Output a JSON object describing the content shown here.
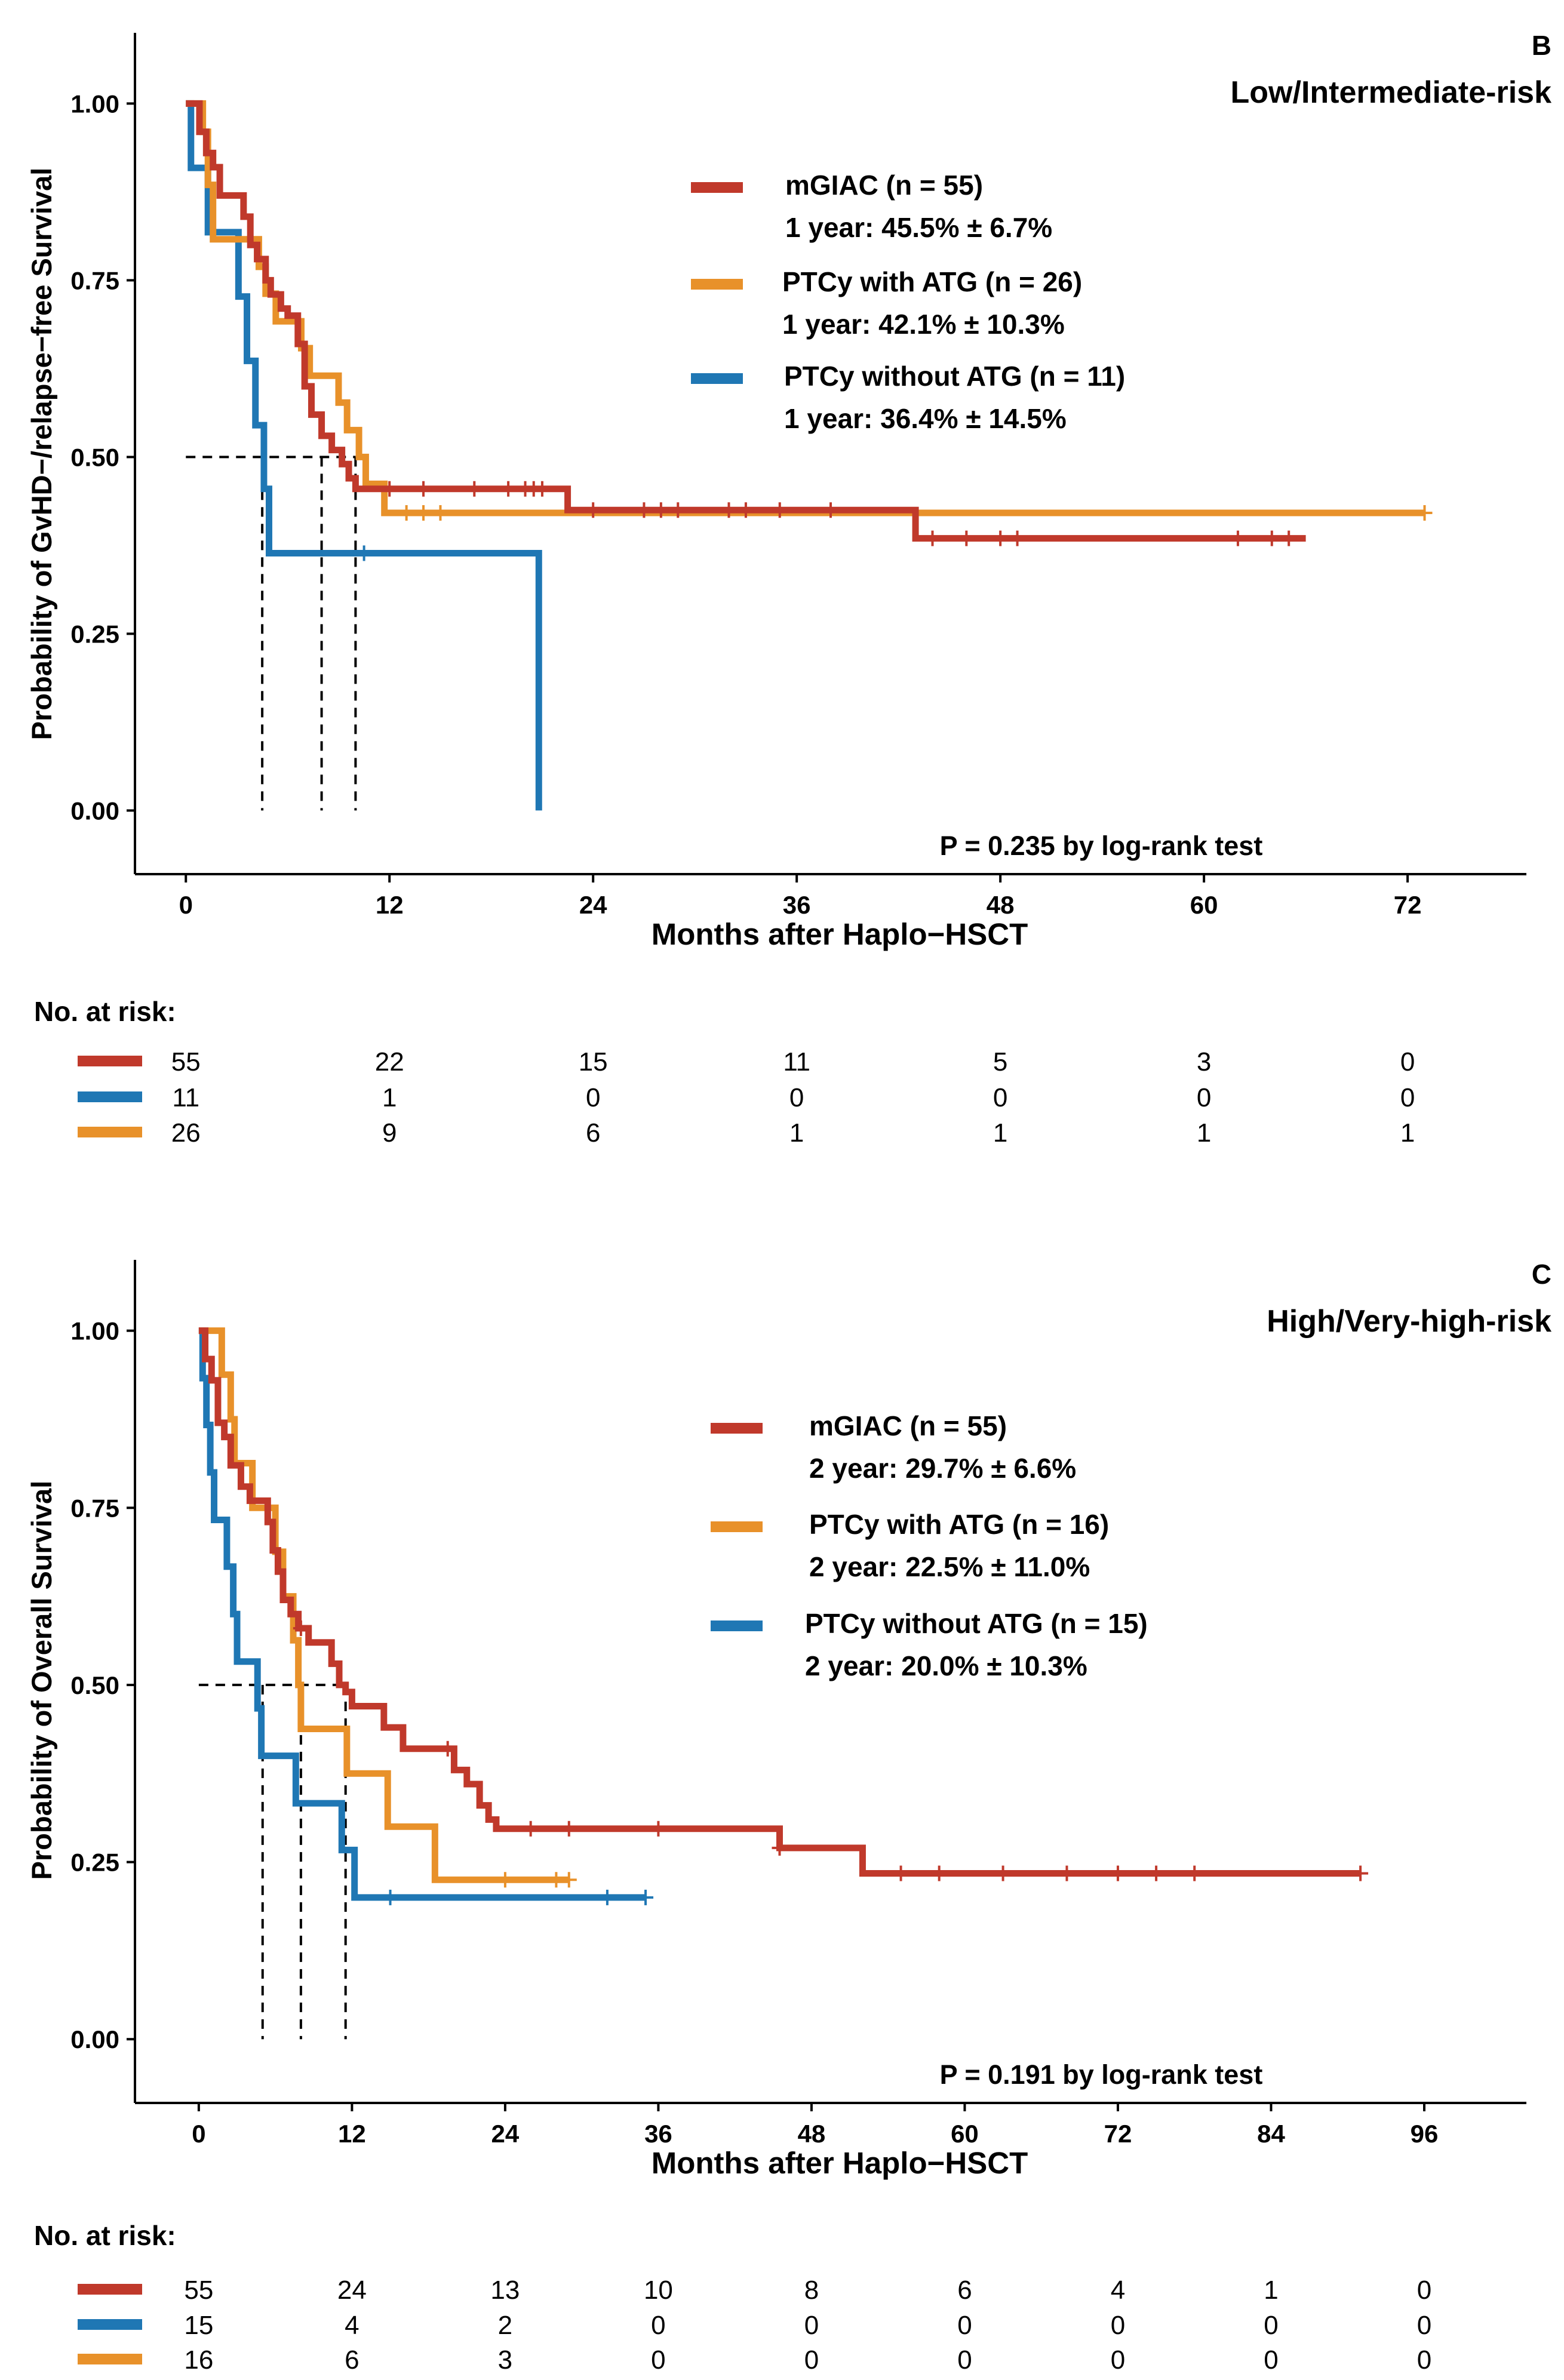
{
  "colors": {
    "mGIAC": "#C0392B",
    "with_atg": "#E8912A",
    "without_atg": "#1F77B4",
    "axis": "#000000"
  },
  "chart_data": [
    {
      "type": "kaplan-meier",
      "panel_letter": "B",
      "title": "Low/Intermediate-risk",
      "ylabel": "Probability of GvHD−/relapse−free Survival",
      "xlabel": "Months after Haplo−HSCT",
      "xlim": [
        -3,
        79
      ],
      "ylim": [
        -0.09,
        1.1
      ],
      "x_ticks": [
        0,
        12,
        24,
        36,
        48,
        60,
        72
      ],
      "y_ticks": [
        "0.00",
        "0.25",
        "0.50",
        "0.75",
        "1.00"
      ],
      "pvalue": "P = 0.235 by log-rank test",
      "median_survival_months": [
        4.5,
        8,
        10
      ],
      "risk_table_title": "No. at risk:",
      "legend_position": "top-right",
      "series": [
        {
          "key": "mGIAC",
          "color_key": "mGIAC",
          "name": "mGIAC (n = 55)",
          "stat": "1 year: 45.5% ± 6.7%",
          "steps": [
            [
              0,
              1.0
            ],
            [
              0.8,
              0.96
            ],
            [
              1.2,
              0.93
            ],
            [
              1.6,
              0.91
            ],
            [
              2,
              0.87
            ],
            [
              3.4,
              0.84
            ],
            [
              3.8,
              0.8
            ],
            [
              4.2,
              0.78
            ],
            [
              4.7,
              0.75
            ],
            [
              5,
              0.73
            ],
            [
              5.6,
              0.71
            ],
            [
              6,
              0.7
            ],
            [
              6.6,
              0.66
            ],
            [
              7,
              0.6
            ],
            [
              7.4,
              0.56
            ],
            [
              8,
              0.53
            ],
            [
              8.6,
              0.51
            ],
            [
              9.2,
              0.49
            ],
            [
              9.6,
              0.47
            ],
            [
              10,
              0.455
            ],
            [
              22.5,
              0.425
            ],
            [
              43,
              0.385
            ],
            [
              66,
              0.385
            ]
          ],
          "censor_times": [
            12,
            14,
            17,
            19,
            20,
            20.5,
            21,
            24,
            27,
            28,
            29,
            32,
            33,
            35,
            38,
            44,
            46,
            48,
            49,
            62,
            64,
            65
          ],
          "risk": [
            "55",
            "22",
            "15",
            "11",
            "5",
            "3",
            "0"
          ]
        },
        {
          "key": "without_atg",
          "color_key": "without_atg",
          "name": "PTCy without ATG (n = 11)",
          "stat": "1 year: 36.4% ± 14.5%",
          "steps": [
            [
              0,
              1.0
            ],
            [
              0.3,
              0.909
            ],
            [
              1.3,
              0.818
            ],
            [
              3.1,
              0.727
            ],
            [
              3.6,
              0.636
            ],
            [
              4.1,
              0.545
            ],
            [
              4.6,
              0.455
            ],
            [
              4.9,
              0.364
            ],
            [
              20.8,
              0.0
            ]
          ],
          "censor_times": [
            10.5
          ],
          "risk": [
            "11",
            "1",
            "0",
            "0",
            "0",
            "0",
            "0"
          ]
        },
        {
          "key": "with_atg",
          "color_key": "with_atg",
          "name": "PTCy with ATG (n = 26)",
          "stat": "1 year: 42.1% ± 10.3%",
          "steps": [
            [
              0,
              1.0
            ],
            [
              1,
              0.96
            ],
            [
              1.3,
              0.885
            ],
            [
              1.6,
              0.808
            ],
            [
              4.3,
              0.769
            ],
            [
              4.7,
              0.731
            ],
            [
              5.3,
              0.692
            ],
            [
              6.8,
              0.654
            ],
            [
              7.3,
              0.615
            ],
            [
              9,
              0.577
            ],
            [
              9.5,
              0.538
            ],
            [
              10.2,
              0.5
            ],
            [
              10.6,
              0.462
            ],
            [
              11.7,
              0.421
            ],
            [
              73,
              0.421
            ]
          ],
          "censor_times": [
            13,
            14,
            15,
            73
          ],
          "risk": [
            "26",
            "9",
            "6",
            "1",
            "1",
            "1",
            "1"
          ]
        }
      ]
    },
    {
      "type": "kaplan-meier",
      "panel_letter": "C",
      "title": "High/Very-high-risk",
      "ylabel": "Probability of Overall Survival",
      "xlabel": "Months after Haplo−HSCT",
      "xlim": [
        -5,
        104
      ],
      "ylim": [
        -0.09,
        1.1
      ],
      "x_ticks": [
        0,
        12,
        24,
        36,
        48,
        60,
        72,
        84,
        96
      ],
      "y_ticks": [
        "0.00",
        "0.25",
        "0.50",
        "0.75",
        "1.00"
      ],
      "pvalue": "P = 0.191 by log-rank test",
      "median_survival_months": [
        5,
        8,
        11.5
      ],
      "risk_table_title": "No. at risk:",
      "legend_position": "top-right",
      "series": [
        {
          "key": "mGIAC",
          "color_key": "mGIAC",
          "name": "mGIAC (n = 55)",
          "stat": "2 year: 29.7% ± 6.6%",
          "steps": [
            [
              0,
              1.0
            ],
            [
              0.5,
              0.96
            ],
            [
              1,
              0.93
            ],
            [
              1.5,
              0.87
            ],
            [
              2,
              0.85
            ],
            [
              2.5,
              0.81
            ],
            [
              3.3,
              0.78
            ],
            [
              4,
              0.76
            ],
            [
              5.4,
              0.73
            ],
            [
              5.8,
              0.69
            ],
            [
              6.2,
              0.66
            ],
            [
              6.6,
              0.62
            ],
            [
              7.2,
              0.6
            ],
            [
              7.8,
              0.58
            ],
            [
              8.6,
              0.56
            ],
            [
              10.4,
              0.53
            ],
            [
              11,
              0.5
            ],
            [
              11.5,
              0.49
            ],
            [
              12,
              0.47
            ],
            [
              14.5,
              0.44
            ],
            [
              16,
              0.41
            ],
            [
              20,
              0.38
            ],
            [
              21,
              0.36
            ],
            [
              22,
              0.33
            ],
            [
              22.7,
              0.31
            ],
            [
              23.3,
              0.297
            ],
            [
              45.5,
              0.27
            ],
            [
              52,
              0.234
            ],
            [
              91,
              0.234
            ]
          ],
          "censor_times": [
            8,
            19.5,
            26,
            29,
            36,
            45.5,
            55,
            58,
            63,
            68,
            72,
            75,
            78,
            91
          ],
          "risk": [
            "55",
            "24",
            "13",
            "10",
            "8",
            "6",
            "4",
            "1",
            "0"
          ]
        },
        {
          "key": "without_atg",
          "color_key": "without_atg",
          "name": "PTCy without ATG (n = 15)",
          "stat": "2 year: 20.0% ± 10.3%",
          "steps": [
            [
              0,
              1.0
            ],
            [
              0.3,
              0.933
            ],
            [
              0.6,
              0.867
            ],
            [
              0.9,
              0.8
            ],
            [
              1.2,
              0.733
            ],
            [
              2.2,
              0.667
            ],
            [
              2.7,
              0.6
            ],
            [
              3,
              0.533
            ],
            [
              4.6,
              0.467
            ],
            [
              4.9,
              0.4
            ],
            [
              7.6,
              0.333
            ],
            [
              11.2,
              0.267
            ],
            [
              12.2,
              0.2
            ],
            [
              35,
              0.2
            ]
          ],
          "censor_times": [
            15,
            32,
            35
          ],
          "risk": [
            "15",
            "4",
            "2",
            "0",
            "0",
            "0",
            "0",
            "0",
            "0"
          ]
        },
        {
          "key": "with_atg",
          "color_key": "with_atg",
          "name": "PTCy with ATG (n = 16)",
          "stat": "2 year: 22.5% ± 11.0%",
          "steps": [
            [
              0,
              1.0
            ],
            [
              1.8,
              0.938
            ],
            [
              2.5,
              0.875
            ],
            [
              2.8,
              0.813
            ],
            [
              4.2,
              0.75
            ],
            [
              6,
              0.688
            ],
            [
              6.6,
              0.625
            ],
            [
              7.4,
              0.563
            ],
            [
              7.8,
              0.5
            ],
            [
              8,
              0.438
            ],
            [
              11.6,
              0.375
            ],
            [
              14.8,
              0.3
            ],
            [
              18.5,
              0.225
            ],
            [
              29,
              0.225
            ]
          ],
          "censor_times": [
            24,
            28,
            29
          ],
          "risk": [
            "16",
            "6",
            "3",
            "0",
            "0",
            "0",
            "0",
            "0",
            "0"
          ]
        }
      ]
    }
  ]
}
